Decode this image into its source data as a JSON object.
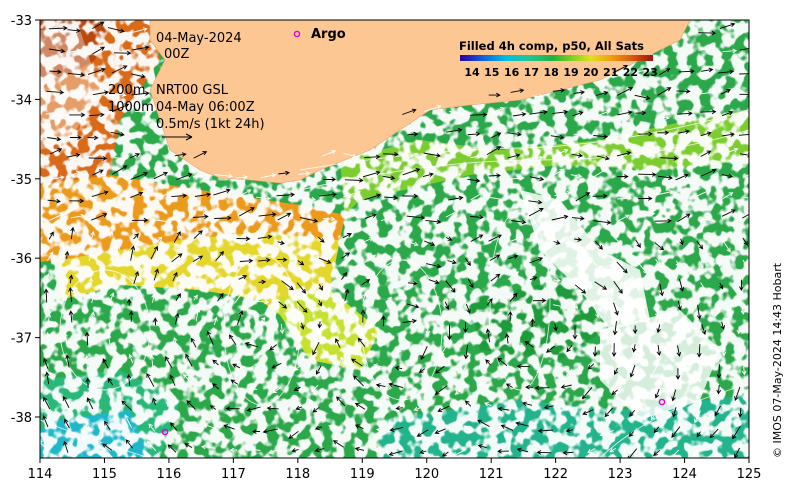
{
  "map": {
    "date_line": "04-May-2024",
    "time_line": "00Z",
    "depth_200": "200m",
    "product": "NRT00 GSL",
    "depth_1000": "1000m",
    "valid_time": "04-May 06:00Z",
    "scale_label": "0.5m/s (1kt 24h)",
    "argo_label": "Argo",
    "credit": "© IMOS 07-May-2024 14:43 Hobart",
    "colorbar_title": "Filled 4h comp, p50, All Sats",
    "colorbar_ticks": [
      "14",
      "15",
      "16",
      "17",
      "18",
      "19",
      "20",
      "21",
      "22",
      "23"
    ],
    "x_ticks": [
      "114",
      "115",
      "116",
      "117",
      "118",
      "119",
      "120",
      "121",
      "122",
      "123",
      "124",
      "125"
    ],
    "y_ticks": [
      "-33",
      "-34",
      "-35",
      "-36",
      "-37",
      "-38"
    ],
    "colors": {
      "land": "#fdc794",
      "argo": "#e000e0",
      "arrow_black": "#000000",
      "arrow_white": "#ffffff"
    }
  }
}
